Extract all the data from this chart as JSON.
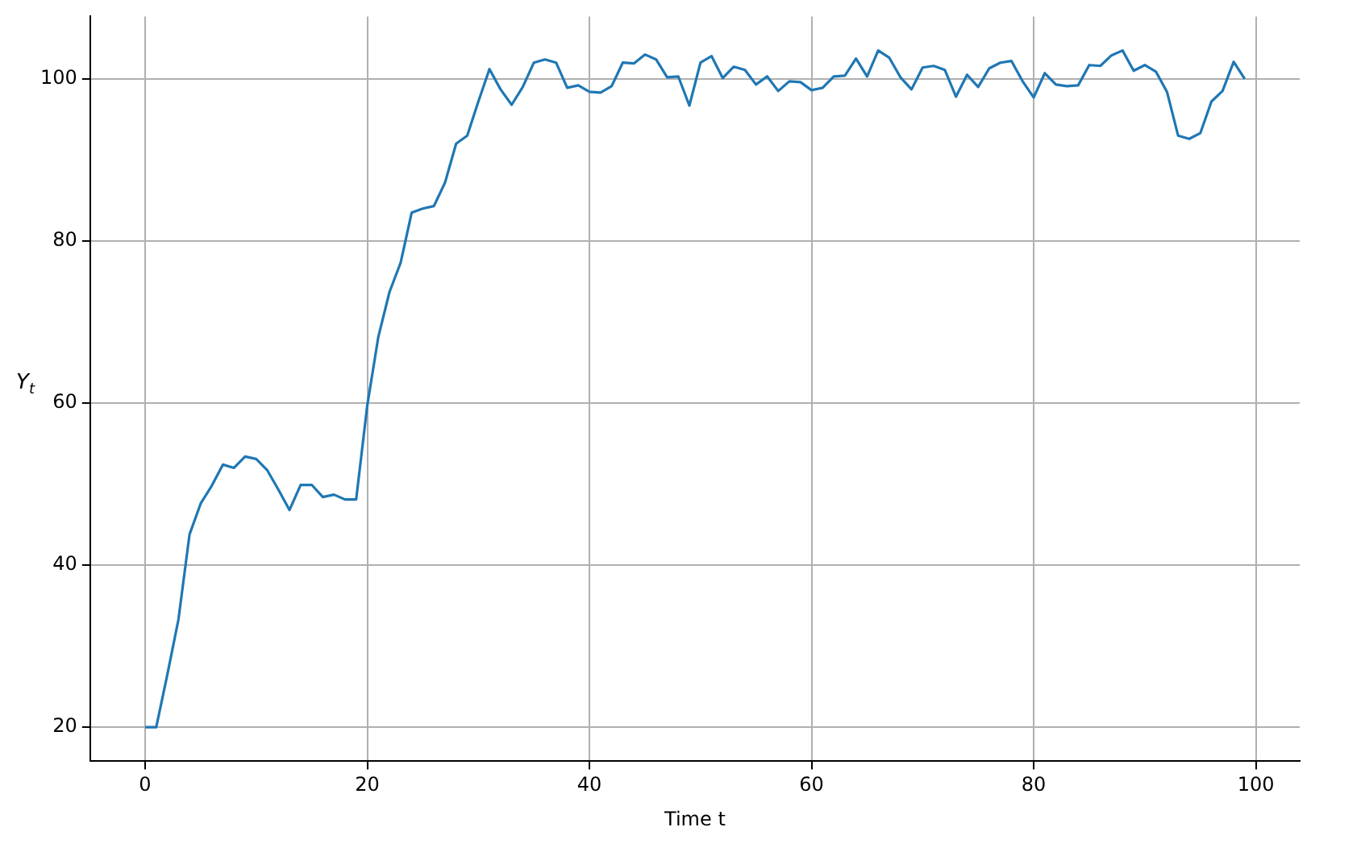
{
  "chart_data": {
    "type": "line",
    "xlabel": "Time t",
    "ylabel": "Y$_{t}$",
    "x": [
      0,
      1,
      2,
      3,
      4,
      5,
      6,
      7,
      8,
      9,
      10,
      11,
      12,
      13,
      14,
      15,
      16,
      17,
      18,
      19,
      20,
      21,
      22,
      23,
      24,
      25,
      26,
      27,
      28,
      29,
      30,
      31,
      32,
      33,
      34,
      35,
      36,
      37,
      38,
      39,
      40,
      41,
      42,
      43,
      44,
      45,
      46,
      47,
      48,
      49,
      50,
      51,
      52,
      53,
      54,
      55,
      56,
      57,
      58,
      59,
      60,
      61,
      62,
      63,
      64,
      65,
      66,
      67,
      68,
      69,
      70,
      71,
      72,
      73,
      74,
      75,
      76,
      77,
      78,
      79,
      80,
      81,
      82,
      83,
      84,
      85,
      86,
      87,
      88,
      89,
      90,
      91,
      92,
      93,
      94,
      95,
      96,
      97,
      98,
      99
    ],
    "series": [
      {
        "color": "#1f77b4",
        "values": [
          20.0,
          20.0,
          26.5,
          33.3,
          43.8,
          47.6,
          49.8,
          52.4,
          52.0,
          53.4,
          53.1,
          51.7,
          49.3,
          46.8,
          49.9,
          49.9,
          48.4,
          48.7,
          48.1,
          48.1,
          59.7,
          68.2,
          73.7,
          77.3,
          83.5,
          84.0,
          84.3,
          87.2,
          92.0,
          93.0,
          97.2,
          101.2,
          98.7,
          96.8,
          99.0,
          102.0,
          102.4,
          102.0,
          98.9,
          99.2,
          98.4,
          98.3,
          99.1,
          102.0,
          101.9,
          103.0,
          102.4,
          100.2,
          100.3,
          96.7,
          102.0,
          102.8,
          100.1,
          101.5,
          101.1,
          99.3,
          100.3,
          98.5,
          99.7,
          99.6,
          98.6,
          98.9,
          100.3,
          100.4,
          102.5,
          100.3,
          103.5,
          102.6,
          100.2,
          98.7,
          101.4,
          101.6,
          101.1,
          97.8,
          100.5,
          99.0,
          101.3,
          102.0,
          102.2,
          99.7,
          97.7,
          100.7,
          99.3,
          99.1,
          99.2,
          101.7,
          101.6,
          102.9,
          103.5,
          101.0,
          101.7,
          100.9,
          98.4,
          93.0,
          92.6,
          93.3,
          97.2,
          98.5,
          102.1,
          100.0
        ]
      }
    ],
    "xlim": [
      -4.95,
      103.95
    ],
    "xticks": [
      0,
      20,
      40,
      60,
      80,
      100
    ],
    "ylim": [
      15.8,
      107.7
    ],
    "yticks": [
      20,
      40,
      60,
      80,
      100
    ],
    "grid": true,
    "legend": false,
    "marker": "none",
    "line_style": "solid"
  }
}
